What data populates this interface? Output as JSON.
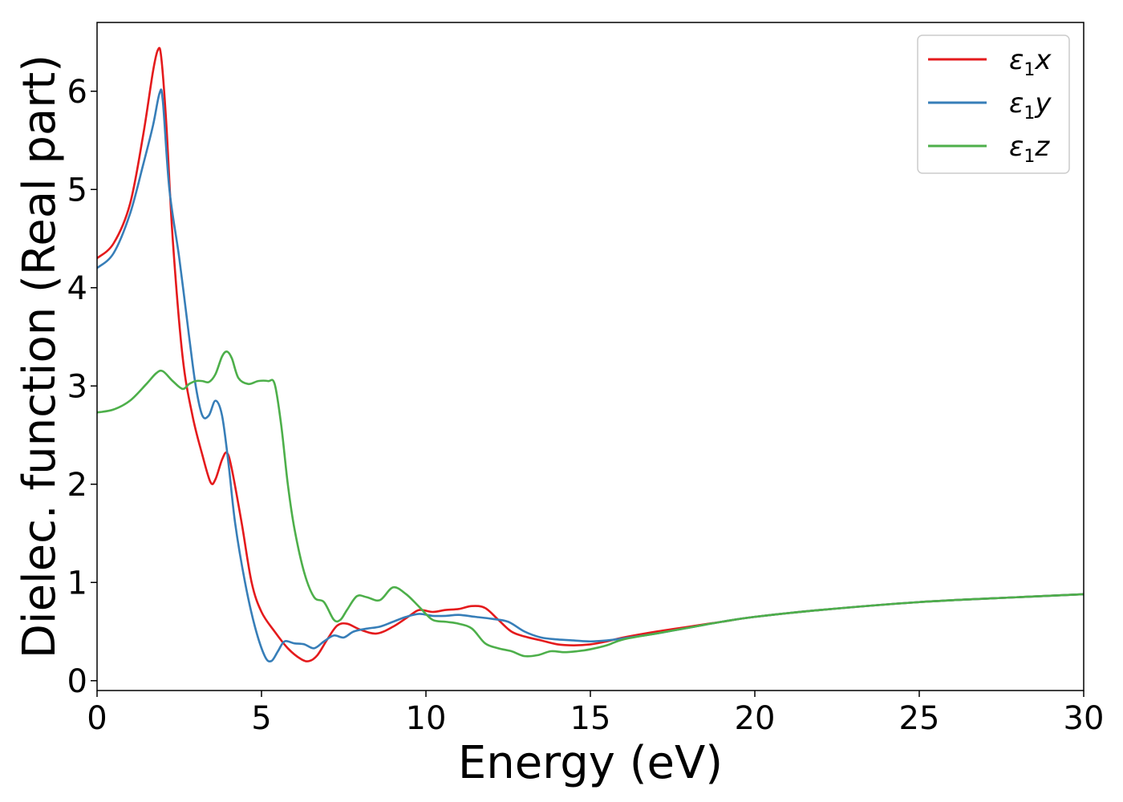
{
  "chart_data": {
    "type": "line",
    "xlabel": "Energy (eV)",
    "ylabel": "Dielec. function (Real part)",
    "xlim": [
      0,
      30
    ],
    "ylim": [
      -0.1,
      6.7
    ],
    "xticks": [
      0,
      5,
      10,
      15,
      20,
      25,
      30
    ],
    "yticks": [
      0,
      1,
      2,
      3,
      4,
      5,
      6
    ],
    "grid": false,
    "legend_position": "top-right",
    "series": [
      {
        "name": "ε1x",
        "legend_main": "ε",
        "legend_sub": "1",
        "legend_suffix": "x",
        "color": "#e41a1c",
        "x": [
          0,
          0.5,
          1.0,
          1.4,
          1.7,
          1.85,
          1.95,
          2.1,
          2.3,
          2.6,
          2.9,
          3.2,
          3.45,
          3.6,
          3.8,
          3.95,
          4.1,
          4.4,
          4.7,
          5.0,
          5.4,
          5.8,
          6.2,
          6.45,
          6.7,
          7.0,
          7.3,
          7.6,
          8.0,
          8.5,
          9.0,
          9.5,
          9.8,
          10.2,
          10.6,
          11.0,
          11.4,
          11.8,
          12.2,
          12.6,
          13.0,
          13.5,
          14.0,
          14.5,
          15.0,
          15.5,
          16.0,
          17.0,
          18.0,
          19.0,
          20.0,
          22.0,
          25.0,
          28.0,
          30.0
        ],
        "y": [
          4.3,
          4.45,
          4.85,
          5.55,
          6.2,
          6.42,
          6.35,
          5.7,
          4.5,
          3.3,
          2.7,
          2.3,
          2.02,
          2.05,
          2.25,
          2.32,
          2.15,
          1.6,
          1.0,
          0.7,
          0.5,
          0.33,
          0.22,
          0.2,
          0.26,
          0.42,
          0.56,
          0.58,
          0.52,
          0.48,
          0.55,
          0.66,
          0.72,
          0.7,
          0.72,
          0.73,
          0.76,
          0.74,
          0.62,
          0.5,
          0.45,
          0.41,
          0.37,
          0.36,
          0.37,
          0.4,
          0.44,
          0.5,
          0.55,
          0.6,
          0.65,
          0.72,
          0.8,
          0.85,
          0.88
        ]
      },
      {
        "name": "ε1y",
        "legend_main": "ε",
        "legend_sub": "1",
        "legend_suffix": "y",
        "color": "#377eb8",
        "x": [
          0,
          0.5,
          1.0,
          1.4,
          1.7,
          1.9,
          2.0,
          2.2,
          2.5,
          2.8,
          3.0,
          3.2,
          3.4,
          3.6,
          3.8,
          4.0,
          4.2,
          4.5,
          4.8,
          5.1,
          5.3,
          5.5,
          5.7,
          6.0,
          6.3,
          6.6,
          6.9,
          7.2,
          7.5,
          7.8,
          8.2,
          8.6,
          9.0,
          9.4,
          9.8,
          10.2,
          10.6,
          11.0,
          11.5,
          12.0,
          12.5,
          13.0,
          13.5,
          14.0,
          14.5,
          15.0,
          15.5,
          16.0,
          17.0,
          18.0,
          19.0,
          20.0,
          22.0,
          25.0,
          28.0,
          30.0
        ],
        "y": [
          4.2,
          4.35,
          4.75,
          5.25,
          5.65,
          5.98,
          5.9,
          5.0,
          4.3,
          3.5,
          3.0,
          2.7,
          2.7,
          2.85,
          2.7,
          2.2,
          1.6,
          1.0,
          0.55,
          0.25,
          0.2,
          0.3,
          0.4,
          0.38,
          0.37,
          0.33,
          0.4,
          0.46,
          0.44,
          0.5,
          0.53,
          0.55,
          0.6,
          0.65,
          0.68,
          0.66,
          0.66,
          0.67,
          0.65,
          0.63,
          0.6,
          0.5,
          0.44,
          0.42,
          0.41,
          0.4,
          0.41,
          0.43,
          0.48,
          0.54,
          0.6,
          0.65,
          0.72,
          0.8,
          0.85,
          0.88
        ]
      },
      {
        "name": "ε1z",
        "legend_main": "ε",
        "legend_sub": "1",
        "legend_suffix": "z",
        "color": "#4daf4a",
        "x": [
          0,
          0.5,
          1.0,
          1.5,
          1.8,
          2.0,
          2.3,
          2.6,
          2.8,
          3.0,
          3.2,
          3.4,
          3.6,
          3.8,
          3.95,
          4.1,
          4.3,
          4.6,
          4.9,
          5.2,
          5.4,
          5.6,
          5.8,
          6.0,
          6.3,
          6.6,
          6.9,
          7.2,
          7.4,
          7.6,
          7.9,
          8.2,
          8.6,
          9.0,
          9.4,
          9.8,
          10.2,
          10.6,
          11.0,
          11.4,
          11.8,
          12.2,
          12.6,
          13.0,
          13.4,
          13.8,
          14.2,
          14.6,
          15.0,
          15.5,
          16.0,
          17.0,
          18.0,
          19.0,
          20.0,
          22.0,
          25.0,
          28.0,
          30.0
        ],
        "y": [
          2.73,
          2.76,
          2.85,
          3.02,
          3.13,
          3.15,
          3.05,
          2.97,
          3.02,
          3.05,
          3.05,
          3.04,
          3.12,
          3.3,
          3.35,
          3.28,
          3.08,
          3.02,
          3.05,
          3.05,
          3.02,
          2.6,
          2.0,
          1.55,
          1.1,
          0.85,
          0.8,
          0.62,
          0.62,
          0.72,
          0.86,
          0.85,
          0.82,
          0.95,
          0.88,
          0.75,
          0.62,
          0.6,
          0.58,
          0.53,
          0.38,
          0.33,
          0.3,
          0.25,
          0.26,
          0.3,
          0.29,
          0.3,
          0.32,
          0.36,
          0.42,
          0.48,
          0.54,
          0.6,
          0.65,
          0.72,
          0.8,
          0.85,
          0.88
        ]
      }
    ]
  }
}
